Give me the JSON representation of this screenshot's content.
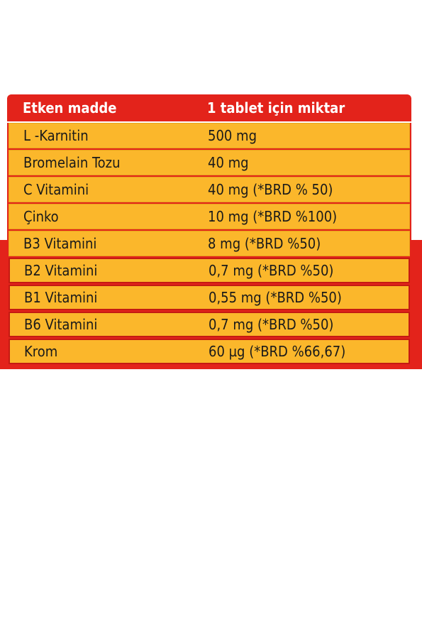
{
  "table": {
    "header": {
      "ingredient": "Etken madde",
      "amount": "1 tablet için miktar"
    },
    "rows": [
      {
        "ingredient": "L -Karnitin",
        "amount": "500 mg"
      },
      {
        "ingredient": "Bromelain Tozu",
        "amount": "40 mg"
      },
      {
        "ingredient": "C Vitamini",
        "amount": "40 mg (*BRD % 50)"
      },
      {
        "ingredient": "Çinko",
        "amount": "10 mg (*BRD %100)"
      },
      {
        "ingredient": "B3 Vitamini",
        "amount": "8 mg (*BRD %50)"
      },
      {
        "ingredient": "B2 Vitamini",
        "amount": "0,7 mg (*BRD %50)"
      },
      {
        "ingredient": "B1 Vitamini",
        "amount": "0,55 mg (*BRD %50)"
      },
      {
        "ingredient": "B6 Vitamini",
        "amount": "0,7 mg (*BRD %50)"
      },
      {
        "ingredient": "Krom",
        "amount": "60 µg (*BRD %66,67)"
      }
    ]
  },
  "colors": {
    "header": "#e3231b",
    "row": "#fbb72b",
    "band": "#e3231b"
  }
}
